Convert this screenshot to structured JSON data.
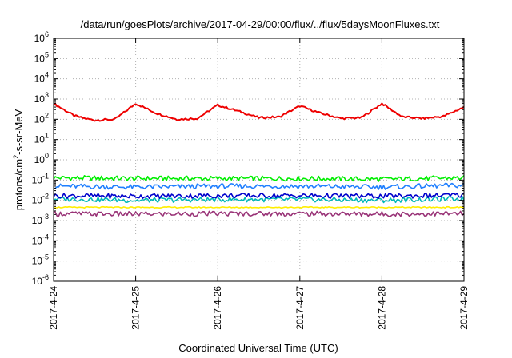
{
  "chart_data": {
    "type": "line",
    "title": "/data/run/goesPlots/archive/2017-04-29/00:00/flux/../flux/5daysMoonFluxes.txt",
    "xlabel": "Coordinated Universal Time (UTC)",
    "ylabel": {
      "prefix": "protons/cm",
      "sup": "2",
      "suffix": "-s-sr-MeV"
    },
    "yscale": "log",
    "ylim_exponents": [
      -6,
      6
    ],
    "y_tick_labels": [
      {
        "base": "10",
        "exp": "6"
      },
      {
        "base": "10",
        "exp": "5"
      },
      {
        "base": "10",
        "exp": "4"
      },
      {
        "base": "10",
        "exp": "3"
      },
      {
        "base": "10",
        "exp": "2"
      },
      {
        "base": "10",
        "exp": "1"
      },
      {
        "base": "10",
        "exp": "0"
      },
      {
        "base": "10",
        "exp": "-1"
      },
      {
        "base": "10",
        "exp": "-2"
      },
      {
        "base": "10",
        "exp": "-3"
      },
      {
        "base": "10",
        "exp": "-4"
      },
      {
        "base": "10",
        "exp": "-5"
      },
      {
        "base": "10",
        "exp": "-6"
      }
    ],
    "x_tick_labels": [
      "2017-4-24",
      "2017-4-25",
      "2017-4-26",
      "2017-4-27",
      "2017-4-28",
      "2017-4-29"
    ],
    "xlim": [
      "2017-04-24T00:00",
      "2017-04-29T00:00"
    ],
    "grid": true,
    "series": [
      {
        "color": "#ee0000",
        "x": [
          "2017-04-24T00:00",
          "2017-04-24T03:00",
          "2017-04-24T06:00",
          "2017-04-24T09:00",
          "2017-04-24T12:00",
          "2017-04-24T18:00",
          "2017-04-25T00:00",
          "2017-04-25T06:00",
          "2017-04-25T12:00",
          "2017-04-25T18:00",
          "2017-04-26T00:00",
          "2017-04-26T06:00",
          "2017-04-26T12:00",
          "2017-04-26T18:00",
          "2017-04-27T00:00",
          "2017-04-27T06:00",
          "2017-04-27T12:00",
          "2017-04-27T18:00",
          "2017-04-28T00:00",
          "2017-04-28T06:00",
          "2017-04-28T12:00",
          "2017-04-28T18:00",
          "2017-04-29T00:00"
        ],
        "y": [
          600,
          300,
          150,
          110,
          90,
          100,
          600,
          200,
          100,
          110,
          500,
          250,
          120,
          130,
          450,
          200,
          110,
          120,
          600,
          130,
          110,
          140,
          400
        ]
      },
      {
        "color": "#00ee00",
        "x": [
          "2017-04-24T00:00",
          "2017-04-25T00:00",
          "2017-04-26T00:00",
          "2017-04-27T00:00",
          "2017-04-28T00:00",
          "2017-04-29T00:00"
        ],
        "y": [
          0.13,
          0.12,
          0.12,
          0.12,
          0.11,
          0.13
        ]
      },
      {
        "color": "#1f7fff",
        "x": [
          "2017-04-24T00:00",
          "2017-04-25T00:00",
          "2017-04-26T00:00",
          "2017-04-27T00:00",
          "2017-04-28T00:00",
          "2017-04-29T00:00"
        ],
        "y": [
          0.05,
          0.045,
          0.05,
          0.05,
          0.045,
          0.055
        ]
      },
      {
        "color": "#00b8b8",
        "x": [
          "2017-04-24T00:00",
          "2017-04-25T00:00",
          "2017-04-26T00:00",
          "2017-04-27T00:00",
          "2017-04-28T00:00",
          "2017-04-29T00:00"
        ],
        "y": [
          0.012,
          0.01,
          0.011,
          0.011,
          0.01,
          0.012
        ]
      },
      {
        "color": "#0000cc",
        "x": [
          "2017-04-24T00:00",
          "2017-04-25T00:00",
          "2017-04-26T00:00",
          "2017-04-27T00:00",
          "2017-04-28T00:00",
          "2017-04-29T00:00"
        ],
        "y": [
          0.017,
          0.016,
          0.017,
          0.017,
          0.016,
          0.018
        ]
      },
      {
        "color": "#ffee00",
        "x": [
          "2017-04-24T00:00",
          "2017-04-25T00:00",
          "2017-04-26T00:00",
          "2017-04-27T00:00",
          "2017-04-28T00:00",
          "2017-04-29T00:00"
        ],
        "y": [
          0.0045,
          0.0045,
          0.0045,
          0.0045,
          0.0045,
          0.0045
        ]
      },
      {
        "color": "#993377",
        "x": [
          "2017-04-24T00:00",
          "2017-04-25T00:00",
          "2017-04-26T00:00",
          "2017-04-27T00:00",
          "2017-04-28T00:00",
          "2017-04-29T00:00"
        ],
        "y": [
          0.0022,
          0.0021,
          0.0022,
          0.0022,
          0.0021,
          0.0022
        ]
      }
    ]
  }
}
